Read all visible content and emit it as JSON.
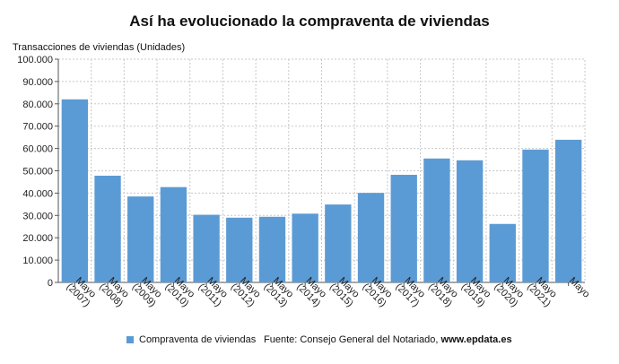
{
  "chart_data": {
    "type": "bar",
    "title": "Así ha evolucionado la compraventa de viviendas",
    "ylabel": "Transacciones de viviendas (Unidades)",
    "xlabel": "",
    "categories": [
      "Mayo (2007)",
      "Mayo (2008)",
      "Mayo (2009)",
      "Mayo (2010)",
      "Mayo (2011)",
      "Mayo (2012)",
      "Mayo (2013)",
      "Mayo (2014)",
      "Mayo (2015)",
      "Mayo (2016)",
      "Mayo (2017)",
      "Mayo (2018)",
      "Mayo (2019)",
      "Mayo (2020)",
      "Mayo (2021)",
      "Mayo"
    ],
    "tick_lines": [
      [
        "Mayo",
        "(2007)"
      ],
      [
        "Mayo",
        "(2008)"
      ],
      [
        "Mayo",
        "(2009)"
      ],
      [
        "Mayo",
        "(2010)"
      ],
      [
        "Mayo",
        "(2011)"
      ],
      [
        "Mayo",
        "(2012)"
      ],
      [
        "Mayo",
        "(2013)"
      ],
      [
        "Mayo",
        "(2014)"
      ],
      [
        "Mayo",
        "(2015)"
      ],
      [
        "Mayo",
        "(2016)"
      ],
      [
        "Mayo",
        "(2017)"
      ],
      [
        "Mayo",
        "(2018)"
      ],
      [
        "Mayo",
        "(2019)"
      ],
      [
        "Mayo",
        "(2020)"
      ],
      [
        "Mayo",
        "(2021)"
      ],
      [
        "Mayo"
      ]
    ],
    "series": [
      {
        "name": "Compraventa de viviendas",
        "color": "#5b9bd5",
        "values": [
          82000,
          47800,
          38500,
          42700,
          30300,
          29000,
          29400,
          30800,
          34900,
          40100,
          48200,
          55500,
          54700,
          26200,
          59500,
          63900
        ]
      }
    ],
    "ylim": [
      0,
      100000
    ],
    "yticks": [
      0,
      10000,
      20000,
      30000,
      40000,
      50000,
      60000,
      70000,
      80000,
      90000,
      100000
    ],
    "ytick_labels": [
      "0",
      "10.000",
      "20.000",
      "30.000",
      "40.000",
      "50.000",
      "60.000",
      "70.000",
      "80.000",
      "90.000",
      "100.000"
    ],
    "grid": true,
    "legend_position": "bottom-left"
  },
  "legend": {
    "label": "Compraventa de viviendas",
    "color": "#5b9bd5"
  },
  "source": {
    "prefix": "Fuente: Consejo General del Notariado, ",
    "site": "www.epdata.es"
  }
}
